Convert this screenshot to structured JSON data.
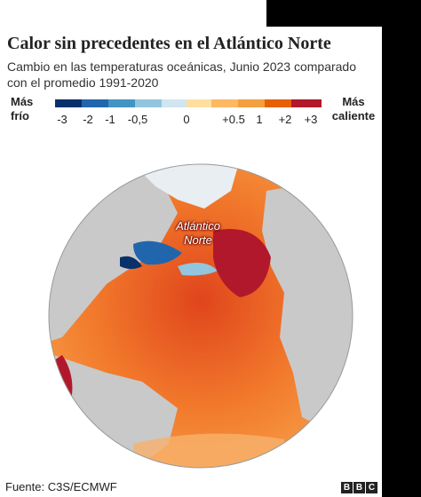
{
  "header": {
    "title": "Calor sin precedentes en el Atlántico Norte",
    "subtitle": "Cambio en las temperaturas oceánicas, Junio 2023 comparado con el promedio 1991-2020"
  },
  "legend": {
    "cold": "Más frío",
    "hot": "Más caliente",
    "ticks": [
      "-3",
      "-2",
      "-1",
      "-0,5",
      "0",
      "+0.5",
      "1",
      "+2",
      "+3"
    ]
  },
  "map": {
    "label": "Atlántico Norte"
  },
  "footer": {
    "source": "Fuente: C3S/ECMWF",
    "logo": [
      "B",
      "B",
      "C"
    ]
  }
}
